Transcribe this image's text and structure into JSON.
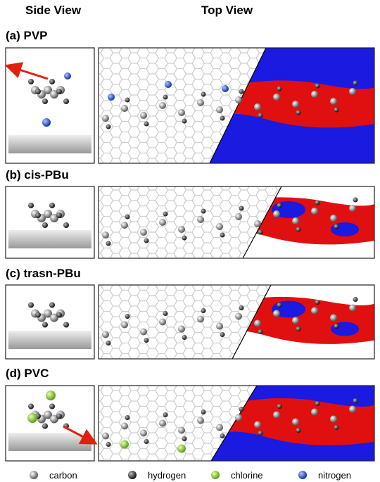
{
  "header": {
    "side_view": "Side View",
    "top_view": "Top View"
  },
  "panels": [
    {
      "label": "(a) PVP"
    },
    {
      "label": "(b) cis-PBu"
    },
    {
      "label": "(c) trasn-PBu"
    },
    {
      "label": "(d) PVC"
    }
  ],
  "legend": [
    {
      "label": "carbon"
    },
    {
      "label": "hydrogen"
    },
    {
      "label": "chlorine"
    },
    {
      "label": "nitrogen"
    }
  ]
}
